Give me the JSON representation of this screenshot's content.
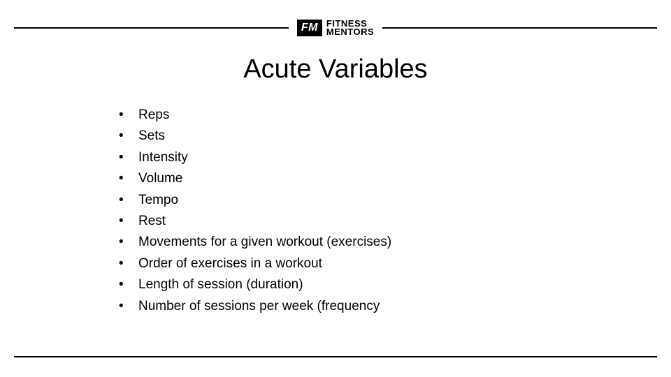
{
  "logo": {
    "badge": "FM",
    "line1": "FITNESS",
    "line2": "MENTORS"
  },
  "title": "Acute Variables",
  "bullets": [
    "Reps",
    "Sets",
    "Intensity",
    "Volume",
    "Tempo",
    "Rest",
    "Movements for a given workout (exercises)",
    "Order of exercises in a workout",
    "Length of session (duration)",
    "Number of sessions per week (frequency"
  ],
  "styling": {
    "background_color": "#ffffff",
    "text_color": "#000000",
    "line_color": "#000000",
    "title_fontsize": 38,
    "bullet_fontsize": 19,
    "logo_badge_bg": "#000000",
    "logo_badge_fg": "#ffffff",
    "slide_width": 960,
    "slide_height": 540
  }
}
